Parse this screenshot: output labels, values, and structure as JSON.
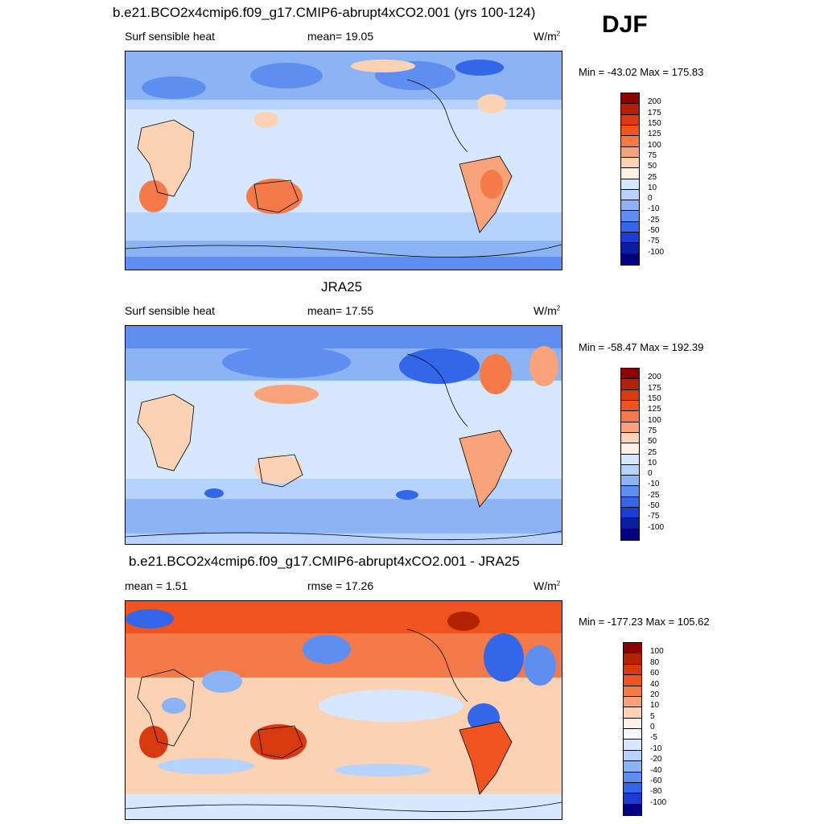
{
  "season": "DJF",
  "panels": [
    {
      "title": "b.e21.BCO2x4cmip6.f09_g17.CMIP6-abrupt4xCO2.001 (yrs 100-124)",
      "left_label": "Surf sensible heat",
      "center_label": "mean=  19.05",
      "units": "W/m",
      "units_sup": "2",
      "minmax": "Min = -43.02 Max = 175.83",
      "colorbar": {
        "labels": [
          "200",
          "175",
          "150",
          "125",
          "100",
          "75",
          "50",
          "25",
          "10",
          "0",
          "-10",
          "-25",
          "-50",
          "-75",
          "-100"
        ],
        "colors": [
          "#8b0000",
          "#b22200",
          "#d83a10",
          "#f0541e",
          "#f57a4a",
          "#f9a37a",
          "#fcd2b4",
          "#fff1e4",
          "#d6e8ff",
          "#b6d2ff",
          "#8cb4f5",
          "#5e8ef0",
          "#3366e8",
          "#1a3ed0",
          "#0a1fa0",
          "#000080"
        ]
      }
    },
    {
      "title": "JRA25",
      "left_label": "Surf sensible heat",
      "center_label": "mean=  17.55",
      "units": "W/m",
      "units_sup": "2",
      "minmax": "Min = -58.47 Max = 192.39",
      "colorbar": {
        "labels": [
          "200",
          "175",
          "150",
          "125",
          "100",
          "75",
          "50",
          "25",
          "10",
          "0",
          "-10",
          "-25",
          "-50",
          "-75",
          "-100"
        ],
        "colors": [
          "#8b0000",
          "#b22200",
          "#d83a10",
          "#f0541e",
          "#f57a4a",
          "#f9a37a",
          "#fcd2b4",
          "#fff1e4",
          "#d6e8ff",
          "#b6d2ff",
          "#8cb4f5",
          "#5e8ef0",
          "#3366e8",
          "#1a3ed0",
          "#0a1fa0",
          "#000080"
        ]
      }
    },
    {
      "title": "b.e21.BCO2x4cmip6.f09_g17.CMIP6-abrupt4xCO2.001 - JRA25",
      "left_label": "mean =   1.51",
      "center_label": "rmse =  17.26",
      "units": "W/m",
      "units_sup": "2",
      "minmax": "Min = -177.23 Max = 105.62",
      "colorbar": {
        "labels": [
          "100",
          "80",
          "60",
          "40",
          "20",
          "10",
          "5",
          "0",
          "-5",
          "-10",
          "-20",
          "-40",
          "-60",
          "-80",
          "-100"
        ],
        "colors": [
          "#8b0000",
          "#b22200",
          "#d83a10",
          "#f0541e",
          "#f57a4a",
          "#f9a37a",
          "#fcd2b4",
          "#fff1e4",
          "#f4f8ff",
          "#d6e8ff",
          "#b6d2ff",
          "#8cb4f5",
          "#5e8ef0",
          "#3366e8",
          "#1a3ed0",
          "#000080"
        ]
      }
    }
  ]
}
